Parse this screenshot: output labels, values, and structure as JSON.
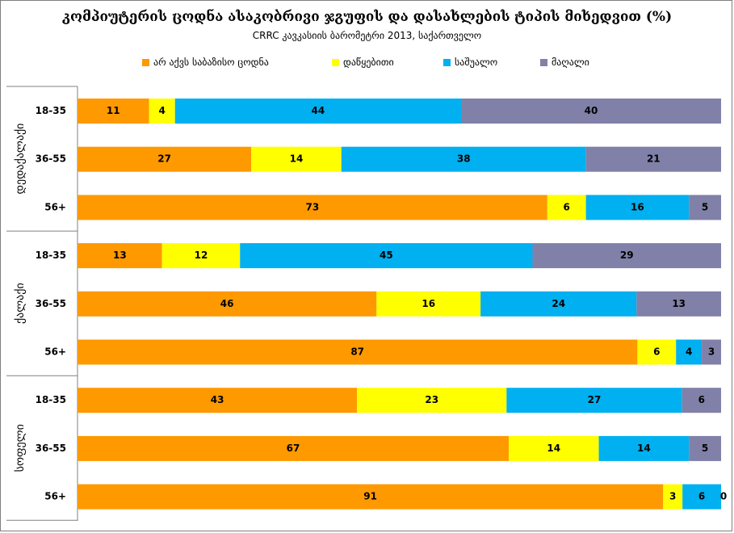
{
  "chart_data": {
    "type": "bar",
    "orientation": "horizontal",
    "stacked": true,
    "title": "კომპიუტერის ცოდნა ასაკობრივი ჯგუფის  და დასახლების ტიპის მიხედვით (%)",
    "subtitle": "CRRC კავკასიის ბარომეტრი 2013, საქართველო",
    "legend_position": "top",
    "xlim": [
      0,
      100
    ],
    "grid": false,
    "series": [
      {
        "name": "არ აქვს საბაზისო ცოდნა",
        "color": "#FF9900"
      },
      {
        "name": "დაწყებითი",
        "color": "#FFFF00"
      },
      {
        "name": "საშუალო",
        "color": "#00B0F0"
      },
      {
        "name": "მაღალი",
        "color": "#8080A8"
      }
    ],
    "groups": [
      {
        "name": "დედაქალაქი",
        "rows": [
          {
            "label": "18-35",
            "values": [
              11,
              4,
              44,
              40
            ]
          },
          {
            "label": "36-55",
            "values": [
              27,
              14,
              38,
              21
            ]
          },
          {
            "label": "56+",
            "values": [
              73,
              6,
              16,
              5
            ]
          }
        ]
      },
      {
        "name": "ქალაქი",
        "rows": [
          {
            "label": "18-35",
            "values": [
              13,
              12,
              45,
              29
            ]
          },
          {
            "label": "36-55",
            "values": [
              46,
              16,
              24,
              13
            ]
          },
          {
            "label": "56+",
            "values": [
              87,
              6,
              4,
              3
            ]
          }
        ]
      },
      {
        "name": "სოფელი",
        "rows": [
          {
            "label": "18-35",
            "values": [
              43,
              23,
              27,
              6
            ]
          },
          {
            "label": "36-55",
            "values": [
              67,
              14,
              14,
              5
            ]
          },
          {
            "label": "56+",
            "values": [
              91,
              3,
              6,
              0
            ]
          }
        ]
      }
    ]
  }
}
